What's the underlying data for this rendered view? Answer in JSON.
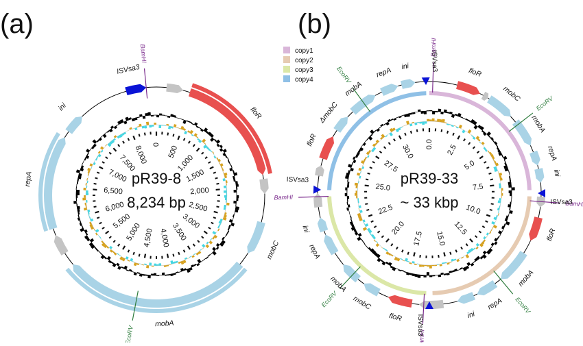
{
  "colors": {
    "gene": "#a9d3e6",
    "floR": "#e8504f",
    "hypothetical": "#c4c4c4",
    "IS": "#0a13d6",
    "BamHI": "#7a2a8c",
    "EcoRV": "#2f7d3e",
    "gc_skew_pos": "#d7a21f",
    "gc_skew_neg": "#45d7e3",
    "gc_content": "#000000",
    "backbone": "#000000",
    "copy1": "#d9b6d9",
    "copy2": "#e6cbb2",
    "copy3": "#dbe7a7",
    "copy4": "#8fc0e6"
  },
  "panels": [
    {
      "label": "(a)",
      "name": "pR39-8",
      "size": "8,234 bp",
      "ticks": [
        "0",
        "500",
        "1,000",
        "1,500",
        "2,000",
        "2,500",
        "3,000",
        "3,500",
        "4,000",
        "4,500",
        "5,000",
        "5,500",
        "6,000",
        "6,500",
        "7,000",
        "7,500",
        "8,000"
      ],
      "features": [
        {
          "label": "floR",
          "kind": "floR",
          "start": 0.05,
          "end": 0.22
        },
        {
          "label": "",
          "kind": "hypothetical",
          "start": 0.226,
          "end": 0.248
        },
        {
          "label": "mobC",
          "kind": "gene",
          "start": 0.29,
          "end": 0.34
        },
        {
          "label": "mobA",
          "kind": "gene",
          "start": 0.36,
          "end": 0.64
        },
        {
          "label": "",
          "kind": "hypothetical",
          "start": 0.66,
          "end": 0.69
        },
        {
          "label": "repA",
          "kind": "gene",
          "start": 0.7,
          "end": 0.84
        },
        {
          "label": "ini",
          "kind": "gene",
          "start": 0.85,
          "end": 0.88
        },
        {
          "label": "IS",
          "kind": "IS",
          "start": 0.955,
          "end": 0.985
        },
        {
          "label": "",
          "kind": "hypothetical",
          "start": 0.015,
          "end": 0.04
        }
      ],
      "sites": [
        {
          "label": "BamHI",
          "kind": "BamHI",
          "pos": 0.985
        },
        {
          "label": "EcoRV",
          "kind": "EcoRV",
          "pos": 0.53
        }
      ],
      "text_labels": [
        {
          "label": "ISVsa3",
          "pos": 0.965
        },
        {
          "label": "floR",
          "pos": 0.14
        },
        {
          "label": "mobC",
          "pos": 0.32
        },
        {
          "label": "mobA",
          "pos": 0.49
        },
        {
          "label": "repA",
          "pos": 0.77
        },
        {
          "label": "ini",
          "pos": 0.87
        }
      ]
    },
    {
      "label": "(b)",
      "name": "pR39-33",
      "size": "~ 33 kbp",
      "ticks": [
        "0.0",
        "2.5",
        "5.0",
        "7.5",
        "10.0",
        "12.5",
        "15.0",
        "17.5",
        "20.0",
        "22.5",
        "25.0",
        "27.5",
        "30.0"
      ],
      "legend": [
        {
          "label": "copy1",
          "color_key": "copy1"
        },
        {
          "label": "copy2",
          "color_key": "copy2"
        },
        {
          "label": "copy3",
          "color_key": "copy3"
        },
        {
          "label": "copy4",
          "color_key": "copy4"
        }
      ],
      "features": [
        {
          "label": "floR",
          "kind": "floR",
          "start": 0.04,
          "end": 0.075
        },
        {
          "label": "mobC",
          "kind": "gene",
          "start": 0.09,
          "end": 0.13
        },
        {
          "label": "mobA",
          "kind": "gene",
          "start": 0.14,
          "end": 0.18
        },
        {
          "label": "repA",
          "kind": "gene",
          "start": 0.19,
          "end": 0.21
        },
        {
          "label": "ini",
          "kind": "gene",
          "start": 0.215,
          "end": 0.235
        },
        {
          "label": "floR",
          "kind": "floR",
          "start": 0.285,
          "end": 0.32
        },
        {
          "label": "mobA",
          "kind": "gene",
          "start": 0.34,
          "end": 0.39
        },
        {
          "label": "repA",
          "kind": "gene",
          "start": 0.4,
          "end": 0.43
        },
        {
          "label": "ini",
          "kind": "gene",
          "start": 0.435,
          "end": 0.46
        },
        {
          "label": "floR",
          "kind": "floR",
          "start": 0.525,
          "end": 0.56
        },
        {
          "label": "mobC",
          "kind": "gene",
          "start": 0.575,
          "end": 0.6
        },
        {
          "label": "mobA",
          "kind": "gene",
          "start": 0.61,
          "end": 0.64
        },
        {
          "label": "repA",
          "kind": "gene",
          "start": 0.66,
          "end": 0.69
        },
        {
          "label": "ini",
          "kind": "gene",
          "start": 0.695,
          "end": 0.715
        },
        {
          "label": "floR",
          "kind": "floR",
          "start": 0.8,
          "end": 0.835
        },
        {
          "label": "ΔmobC",
          "kind": "gene",
          "start": 0.845,
          "end": 0.87
        },
        {
          "label": "mobA",
          "kind": "gene",
          "start": 0.88,
          "end": 0.92
        },
        {
          "label": "repA",
          "kind": "gene",
          "start": 0.93,
          "end": 0.955
        },
        {
          "label": "ini",
          "kind": "gene",
          "start": 0.96,
          "end": 0.98
        },
        {
          "label": "",
          "kind": "hypothetical",
          "start": 0.08,
          "end": 0.088
        },
        {
          "label": "",
          "kind": "hypothetical",
          "start": 0.255,
          "end": 0.27
        },
        {
          "label": "",
          "kind": "hypothetical",
          "start": 0.48,
          "end": 0.515
        },
        {
          "label": "",
          "kind": "hypothetical",
          "start": 0.73,
          "end": 0.75
        },
        {
          "label": "",
          "kind": "hypothetical",
          "start": 0.775,
          "end": 0.79
        }
      ],
      "IS_marks": [
        {
          "label": "ISVsa3",
          "pos": 0.995
        },
        {
          "label": "ISVsa3",
          "pos": 0.25
        },
        {
          "label": "ISVsa3",
          "pos": 0.5
        },
        {
          "label": "ISVsa3",
          "pos": 0.755
        }
      ],
      "sites": [
        {
          "label": "BamHI",
          "kind": "BamHI",
          "pos": 0.005
        },
        {
          "label": "EcoRV",
          "kind": "EcoRV",
          "pos": 0.145
        },
        {
          "label": "BamHI",
          "kind": "BamHI",
          "pos": 0.262
        },
        {
          "label": "EcoRV",
          "kind": "EcoRV",
          "pos": 0.39
        },
        {
          "label": "BamHI",
          "kind": "BamHI",
          "pos": 0.508
        },
        {
          "label": "EcoRV",
          "kind": "EcoRV",
          "pos": 0.62
        },
        {
          "label": "BamHI",
          "kind": "BamHI",
          "pos": 0.745
        },
        {
          "label": "EcoRV",
          "kind": "EcoRV",
          "pos": 0.9
        }
      ],
      "copies": [
        {
          "color_key": "copy1",
          "start": 0.0,
          "end": 0.245
        },
        {
          "color_key": "copy2",
          "start": 0.255,
          "end": 0.495
        },
        {
          "color_key": "copy3",
          "start": 0.505,
          "end": 0.745
        },
        {
          "color_key": "copy4",
          "start": 0.755,
          "end": 0.995
        }
      ]
    }
  ]
}
